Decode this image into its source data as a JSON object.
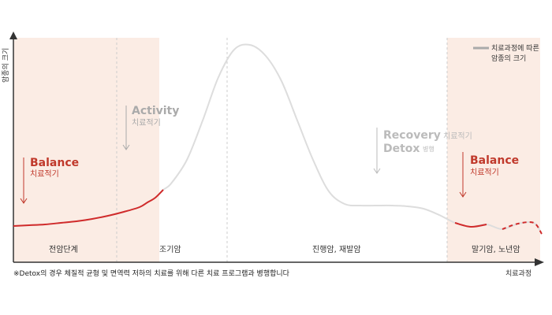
{
  "chart_data": {
    "type": "line",
    "ylabel": "암종의 크기",
    "xlabel": "치료과정",
    "legend": {
      "label_line1": "치료과정에 따른",
      "label_line2": "암종의 크기",
      "color": "#aaaaaa",
      "placement": "top-right"
    },
    "stages": [
      "전암단계",
      "조기암",
      "진행암, 재발암",
      "말기암, 노년암"
    ],
    "phases": [
      {
        "title": "Balance",
        "subtitle": "치료적기",
        "color": "#c0392b"
      },
      {
        "title": "Activity",
        "subtitle": "치료적기",
        "color": "#aaaaaa"
      },
      {
        "title": "Recovery",
        "title2": "Detox",
        "suffix": "병행",
        "subtitle": "치료적기",
        "color": "#bbbbbb"
      },
      {
        "title": "Balance",
        "subtitle": "치료적기",
        "color": "#c0392b"
      }
    ],
    "series": [
      {
        "name": "치료과정에 따른 암종의 크기",
        "x": [
          0,
          20,
          40,
          60,
          80,
          100,
          120,
          140,
          160,
          170,
          180,
          190,
          200,
          220,
          240,
          260,
          280,
          300,
          320,
          340,
          360,
          380,
          400,
          420,
          440,
          460,
          480,
          500,
          520,
          540,
          560,
          580,
          600,
          620,
          640,
          660,
          670
        ],
        "y": [
          16,
          17,
          18,
          20,
          22,
          25,
          29,
          34,
          40,
          46,
          52,
          62,
          70,
          100,
          150,
          205,
          240,
          246,
          232,
          200,
          150,
          100,
          60,
          44,
          42,
          42,
          42,
          41,
          38,
          30,
          20,
          15,
          18,
          12,
          19,
          20,
          6
        ]
      }
    ],
    "highlighted_ranges": [
      [
        0,
        190
      ],
      [
        550,
        670
      ]
    ],
    "grid": false
  },
  "note": "※Detox의 경우 체질적 균형 및 면역력 저하의 치료를 위해 다른 치료 프로그램과 병행합니다"
}
